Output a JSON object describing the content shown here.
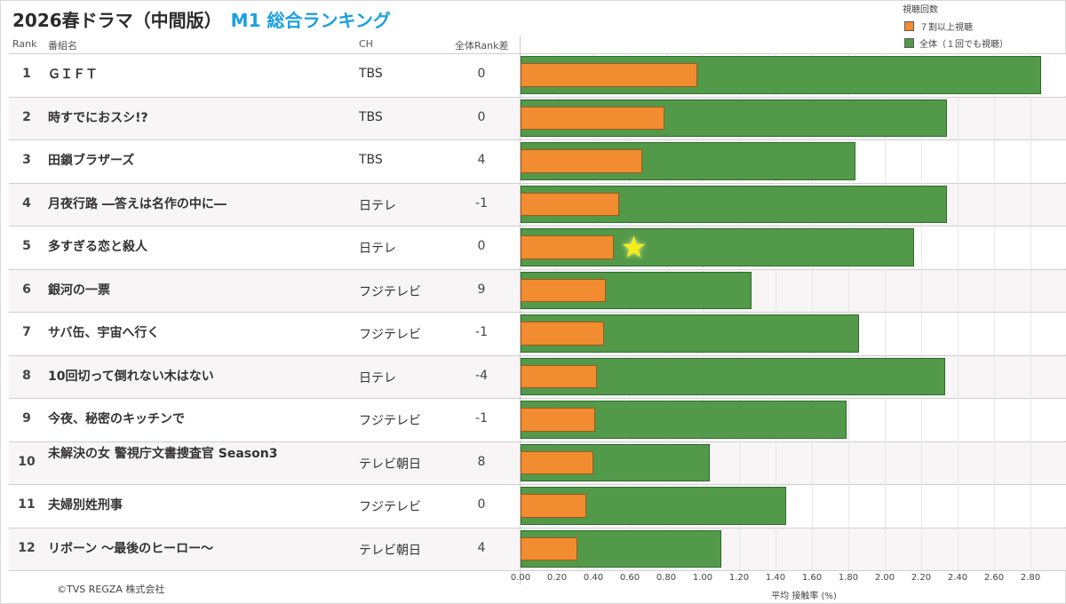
{
  "title": "2026春ドラマ（中間版）",
  "subtitle": "M1 総合ランキング",
  "legend": {
    "title": "視聴回数",
    "items": [
      {
        "label": "７割以上視聴",
        "color": "#f28c30"
      },
      {
        "label": "全体（１回でも視聴）",
        "color": "#53994a"
      }
    ]
  },
  "table_headers": {
    "rank": "Rank",
    "name": "番組名",
    "channel": "CH",
    "diff": "全体Rank差"
  },
  "rows": [
    {
      "rank": "1",
      "name": "ＧＩＦＴ",
      "channel": "TBS",
      "diff": "0"
    },
    {
      "rank": "2",
      "name": "時すでにおスシ!?",
      "channel": "TBS",
      "diff": "0"
    },
    {
      "rank": "3",
      "name": "田鎖ブラザーズ",
      "channel": "TBS",
      "diff": "4"
    },
    {
      "rank": "4",
      "name": "月夜行路 ―答えは名作の中に―",
      "channel": "日テレ",
      "diff": "-1"
    },
    {
      "rank": "5",
      "name": "多すぎる恋と殺人",
      "channel": "日テレ",
      "diff": "0"
    },
    {
      "rank": "6",
      "name": "銀河の一票",
      "channel": "フジテレビ",
      "diff": "9"
    },
    {
      "rank": "7",
      "name": "サバ缶、宇宙へ行く",
      "channel": "フジテレビ",
      "diff": "-1"
    },
    {
      "rank": "8",
      "name": "10回切って倒れない木はない",
      "channel": "日テレ",
      "diff": "-4"
    },
    {
      "rank": "9",
      "name": "今夜、秘密のキッチンで",
      "channel": "フジテレビ",
      "diff": "-1"
    },
    {
      "rank": "10",
      "name": "未解決の女 警視庁文書捜査官 Season3",
      "channel": "テレビ朝日",
      "diff": "8"
    },
    {
      "rank": "11",
      "name": "夫婦別姓刑事",
      "channel": "フジテレビ",
      "diff": "0"
    },
    {
      "rank": "12",
      "name": "リボーン ～最後のヒーロー～",
      "channel": "テレビ朝日",
      "diff": "4"
    }
  ],
  "chart_data": {
    "type": "bar",
    "orientation": "horizontal",
    "categories": [
      "ＧＩＦＴ",
      "時すでにおスシ!?",
      "田鎖ブラザーズ",
      "月夜行路 ―答えは名作の中に―",
      "多すぎる恋と殺人",
      "銀河の一票",
      "サバ缶、宇宙へ行く",
      "10回切って倒れない木はない",
      "今夜、秘密のキッチンで",
      "未解決の女 警視庁文書捜査官 Season3",
      "夫婦別姓刑事",
      "リボーン ～最後のヒーロー～"
    ],
    "series": [
      {
        "name": "全体（１回でも視聴）",
        "color": "#53994a",
        "values": [
          2.86,
          2.34,
          1.84,
          2.34,
          2.16,
          1.27,
          1.86,
          2.33,
          1.79,
          1.04,
          1.46,
          1.1
        ]
      },
      {
        "name": "７割以上視聴",
        "color": "#f28c30",
        "values": [
          0.97,
          0.79,
          0.67,
          0.54,
          0.51,
          0.47,
          0.46,
          0.42,
          0.41,
          0.4,
          0.36,
          0.31
        ]
      }
    ],
    "xlabel": "平均 接触率 (%)",
    "ylabel": "",
    "xlim": [
      0,
      3.0
    ],
    "ticks": [
      "0.00",
      "0.20",
      "0.40",
      "0.60",
      "0.80",
      "1.00",
      "1.20",
      "1.40",
      "1.60",
      "1.80",
      "2.00",
      "2.20",
      "2.40",
      "2.60",
      "2.80"
    ],
    "grid": true,
    "legend_position": "top-right",
    "highlight": {
      "row": 5,
      "marker": "star-icon",
      "color": "#f5ee19"
    }
  },
  "copyright": "©TVS REGZA 株式会社"
}
